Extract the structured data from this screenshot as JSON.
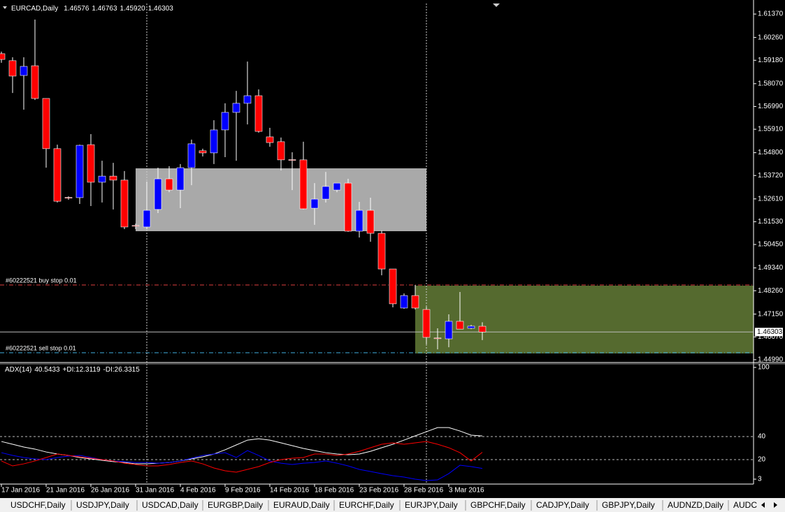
{
  "chart_data": [
    {
      "type": "candlestick",
      "title": "EURCAD,Daily",
      "quote": [
        {
          "value": 1.46576,
          "label": "1.46576"
        },
        {
          "value": 1.46763,
          "label": "1.46763"
        },
        {
          "value": 1.4592,
          "label": "1.45920"
        },
        {
          "value": 1.46303,
          "label": "1.46303"
        }
      ],
      "categories": [
        "17 Jan 2016",
        null,
        null,
        null,
        "21 Jan 2016",
        null,
        null,
        null,
        "26 Jan 2016",
        null,
        null,
        null,
        "31 Jan 2016",
        null,
        null,
        null,
        "4 Feb 2016",
        null,
        null,
        null,
        "9 Feb 2016",
        null,
        null,
        null,
        "14 Feb 2016",
        null,
        null,
        null,
        "18 Feb 2016",
        null,
        null,
        null,
        "23 Feb 2016",
        null,
        null,
        null,
        "28 Feb 2016",
        null,
        null,
        null,
        "3 Mar 2016",
        null,
        null,
        null
      ],
      "open": [
        1.5949,
        1.5916,
        1.5846,
        1.5892,
        1.5737,
        1.5499,
        1.5268,
        1.5267,
        1.5518,
        1.534,
        1.5369,
        1.535,
        1.5135,
        1.5128,
        1.5211,
        1.5356,
        1.5303,
        1.5409,
        1.5489,
        1.5479,
        1.5588,
        1.5671,
        1.5714,
        1.575,
        1.5555,
        1.5532,
        1.5447,
        1.5446,
        1.5217,
        1.526,
        1.5303,
        1.5336,
        1.5108,
        1.5207,
        1.5098,
        1.4929,
        1.4744,
        1.4803,
        1.4737,
        1.4602,
        1.4598,
        1.4681,
        1.4648,
        1.46576
      ],
      "high": [
        1.5959,
        1.5932,
        1.5932,
        1.6111,
        1.5737,
        1.5518,
        1.5273,
        1.5518,
        1.5568,
        1.5442,
        1.5432,
        1.5393,
        1.5144,
        1.5343,
        1.5409,
        1.5416,
        1.5426,
        1.5542,
        1.5499,
        1.5634,
        1.5714,
        1.5773,
        1.5912,
        1.578,
        1.5598,
        1.5552,
        1.5482,
        1.5532,
        1.5336,
        1.5389,
        1.5336,
        1.5356,
        1.5247,
        1.5267,
        1.5111,
        1.4929,
        1.4813,
        1.4853,
        1.475,
        1.4648,
        1.4714,
        1.482,
        1.4664,
        1.46763
      ],
      "low": [
        1.5906,
        1.5763,
        1.5684,
        1.573,
        1.5409,
        1.5244,
        1.5257,
        1.5237,
        1.5227,
        1.5244,
        1.5211,
        1.5118,
        1.5118,
        1.5118,
        1.5194,
        1.5293,
        1.5217,
        1.5326,
        1.5462,
        1.5426,
        1.5459,
        1.5442,
        1.5614,
        1.5575,
        1.5508,
        1.5396,
        1.5303,
        1.5211,
        1.5138,
        1.5244,
        1.5293,
        1.5105,
        1.5078,
        1.5058,
        1.4899,
        1.4747,
        1.474,
        1.4737,
        1.4572,
        1.4548,
        1.4558,
        1.4644,
        1.4644,
        1.4592
      ],
      "close": [
        1.5922,
        1.5843,
        1.5889,
        1.5737,
        1.5499,
        1.525,
        1.5266,
        1.5515,
        1.534,
        1.5369,
        1.535,
        1.5128,
        1.5133,
        1.5207,
        1.5356,
        1.5303,
        1.5409,
        1.5522,
        1.5479,
        1.5588,
        1.5671,
        1.5714,
        1.575,
        1.5581,
        1.5528,
        1.5446,
        1.5445,
        1.5214,
        1.526,
        1.532,
        1.5336,
        1.5108,
        1.5207,
        1.5098,
        1.4929,
        1.4764,
        1.4803,
        1.4744,
        1.4605,
        1.46,
        1.4681,
        1.4644,
        1.4658,
        1.46303
      ],
      "colors": {
        "up": "#0000ff",
        "down": "#ff0000",
        "wick": "#ffffff"
      },
      "ylim": [
        1.4489,
        1.6187
      ],
      "yticks": [
        {
          "value": 1.6137,
          "label": "1.61370"
        },
        {
          "value": 1.6026,
          "label": "1.60260"
        },
        {
          "value": 1.5918,
          "label": "1.59180"
        },
        {
          "value": 1.5807,
          "label": "1.58070"
        },
        {
          "value": 1.5699,
          "label": "1.56990"
        },
        {
          "value": 1.5591,
          "label": "1.55910"
        },
        {
          "value": 1.548,
          "label": "1.54800"
        },
        {
          "value": 1.5372,
          "label": "1.53720"
        },
        {
          "value": 1.5261,
          "label": "1.52610"
        },
        {
          "value": 1.5153,
          "label": "1.51530"
        },
        {
          "value": 1.5045,
          "label": "1.50450"
        },
        {
          "value": 1.4934,
          "label": "1.49340"
        },
        {
          "value": 1.4826,
          "label": "1.48260"
        },
        {
          "value": 1.4715,
          "label": "1.47150"
        },
        {
          "value": 1.4607,
          "label": "1.46070"
        },
        {
          "value": 1.4499,
          "label": "1.44990"
        }
      ],
      "annotations": [
        "#60222521 buy stop 0.01",
        "#60222521 sell stop 0.01"
      ]
    },
    {
      "type": "line",
      "series": [
        {
          "name": "ADX(14)",
          "color": "#ffffff",
          "values": [
            35.7,
            33.3,
            30.9,
            29.1,
            26.6,
            24.8,
            23.6,
            21.8,
            20.6,
            19.4,
            18.2,
            17.5,
            16.3,
            16.3,
            16.9,
            17.5,
            18.8,
            20.6,
            22.4,
            24.8,
            28.5,
            32.7,
            36.9,
            38.1,
            36.9,
            34.5,
            32.1,
            29.7,
            27.8,
            26.0,
            24.8,
            24.2,
            24.8,
            27.2,
            30.3,
            33.3,
            36.9,
            40.6,
            44.2,
            47.8,
            47.8,
            44.8,
            41.2,
            40.5433
          ]
        },
        {
          "name": "+DI:",
          "color": "#0000ff",
          "values": [
            26.0,
            23.6,
            21.8,
            20.6,
            20.0,
            21.8,
            23.0,
            23.6,
            21.8,
            20.0,
            18.8,
            18.2,
            17.5,
            17.5,
            16.9,
            17.5,
            18.8,
            21.2,
            23.6,
            24.8,
            26.0,
            21.8,
            27.8,
            23.6,
            18.8,
            16.9,
            15.7,
            16.9,
            17.5,
            18.8,
            16.9,
            14.5,
            11.5,
            9.7,
            7.8,
            6.0,
            4.8,
            3.0,
            1.8,
            2.4,
            7.8,
            15.1,
            13.9,
            12.3119
          ]
        },
        {
          "name": "-DI:",
          "color": "#ff0000",
          "values": [
            18.8,
            14.5,
            16.3,
            18.8,
            21.8,
            24.8,
            23.6,
            22.4,
            21.2,
            20.0,
            18.8,
            16.9,
            15.7,
            14.5,
            14.5,
            15.7,
            17.5,
            18.8,
            16.3,
            12.7,
            10.3,
            9.1,
            11.5,
            13.9,
            17.5,
            20.0,
            21.2,
            21.8,
            24.8,
            24.8,
            23.6,
            24.8,
            27.2,
            30.3,
            33.3,
            34.5,
            33.3,
            34.5,
            35.7,
            33.3,
            30.3,
            26.0,
            18.8,
            26.3315
          ]
        }
      ],
      "ylim": [
        3,
        100
      ],
      "yticks": [
        100,
        40,
        20,
        3
      ]
    }
  ],
  "tabs": [
    "USDCHF,Daily",
    "USDJPY,Daily",
    "USDCAD,Daily",
    "EURGBP,Daily",
    "EURAUD,Daily",
    "EURCHF,Daily",
    "EURJPY,Daily",
    "GBPCHF,Daily",
    "CADJPY,Daily",
    "GBPJPY,Daily",
    "AUDNZD,Daily",
    "AUDC"
  ]
}
